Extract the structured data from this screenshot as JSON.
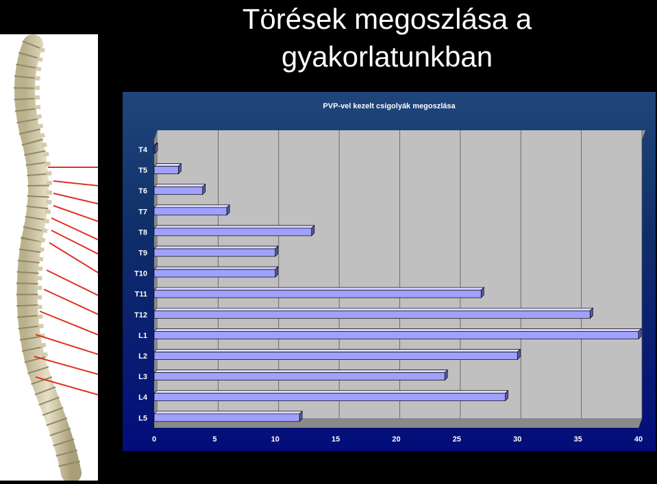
{
  "slide": {
    "title_line1": "Törések megoszlása a",
    "title_line2": "gyakorlatunkban"
  },
  "colors": {
    "background": "#000000",
    "chart_panel": "#0f2e69",
    "plot_area": "#c0c0c0",
    "bar_fill": "#a0a0ff",
    "pointer_lines": "#e03020"
  },
  "chart_data": {
    "type": "bar",
    "orientation": "horizontal",
    "title": "PVP-vel kezelt csigolyák megoszlása",
    "xlabel": "",
    "ylabel": "",
    "xlim": [
      0,
      40
    ],
    "x_ticks": [
      "0",
      "5",
      "10",
      "15",
      "20",
      "25",
      "30",
      "35",
      "40"
    ],
    "grid": true,
    "legend": "none",
    "categories": [
      "T4",
      "T5",
      "T6",
      "T7",
      "T8",
      "T9",
      "T10",
      "T11",
      "T12",
      "L1",
      "L2",
      "L3",
      "L4",
      "L5"
    ],
    "values": [
      0,
      2,
      4,
      6,
      13,
      10,
      10,
      27,
      36,
      40,
      30,
      24,
      29,
      12
    ]
  }
}
